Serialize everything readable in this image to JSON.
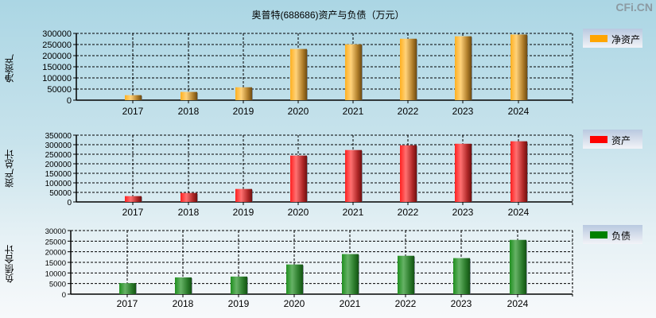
{
  "title": "奥普特(688686)资产与负债（万元）",
  "brand": "CFi.CN",
  "chart_data": [
    {
      "type": "bar",
      "title": "净资产",
      "ylabel": "净资产",
      "legend": "净资产",
      "color": "#ffa500",
      "categories": [
        "2017",
        "2018",
        "2019",
        "2020",
        "2021",
        "2022",
        "2023",
        "2024"
      ],
      "values": [
        22500,
        37000,
        58000,
        230000,
        251000,
        276000,
        287000,
        295000
      ],
      "yticks": [
        0,
        50000,
        100000,
        150000,
        200000,
        250000,
        300000
      ],
      "ylim": [
        0,
        300000
      ],
      "legend_position": "right",
      "grid": true
    },
    {
      "type": "bar",
      "title": "资产",
      "ylabel": "资产总计",
      "legend": "资产",
      "color": "#ff0000",
      "categories": [
        "2017",
        "2018",
        "2019",
        "2020",
        "2021",
        "2022",
        "2023",
        "2024"
      ],
      "values": [
        30500,
        47000,
        68000,
        243000,
        272000,
        297000,
        305000,
        318000
      ],
      "yticks": [
        0,
        50000,
        100000,
        150000,
        200000,
        250000,
        300000,
        350000
      ],
      "ylim": [
        0,
        350000
      ],
      "legend_position": "right",
      "grid": true
    },
    {
      "type": "bar",
      "title": "负债",
      "ylabel": "负债合计",
      "legend": "负债",
      "color": "#008000",
      "categories": [
        "2017",
        "2018",
        "2019",
        "2020",
        "2021",
        "2022",
        "2023",
        "2024"
      ],
      "values": [
        5200,
        7900,
        8300,
        14000,
        18900,
        18100,
        17000,
        25600
      ],
      "yticks": [
        0,
        5000,
        10000,
        15000,
        20000,
        25000,
        30000
      ],
      "ylim": [
        0,
        30000
      ],
      "legend_position": "right",
      "grid": true
    }
  ]
}
